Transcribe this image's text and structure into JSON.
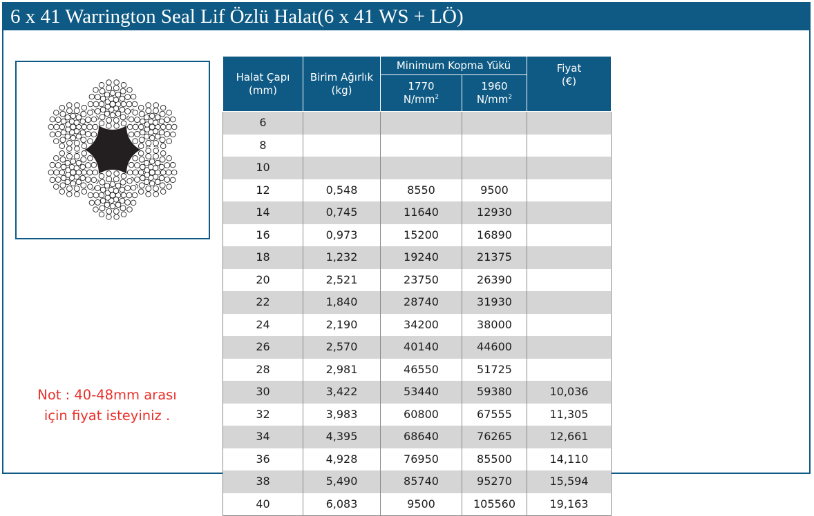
{
  "header": {
    "title": "6 x 41 Warrington Seal Lif Özlü Halat(6 x 41 WS + LÖ)"
  },
  "image": {
    "icon": "wire-rope-cross-section-icon"
  },
  "table": {
    "col_diameter": "Halat Çapı",
    "col_diameter_unit": "(mm)",
    "col_weight": "Birim Ağırlık",
    "col_weight_unit": "(kg)",
    "col_break_group": "Minimum Kopma Yükü",
    "col_1770": "1770",
    "col_1960": "1960",
    "unit_nmm": "N/mm",
    "unit_exp": "2",
    "col_price": "Fiyat",
    "col_price_unit": "(€)",
    "rows": [
      {
        "d": "6",
        "w": "",
        "k1770": "",
        "k1960": "",
        "price": ""
      },
      {
        "d": "8",
        "w": "",
        "k1770": "",
        "k1960": "",
        "price": ""
      },
      {
        "d": "10",
        "w": "",
        "k1770": "",
        "k1960": "",
        "price": ""
      },
      {
        "d": "12",
        "w": "0,548",
        "k1770": "8550",
        "k1960": "9500",
        "price": ""
      },
      {
        "d": "14",
        "w": "0,745",
        "k1770": "11640",
        "k1960": "12930",
        "price": ""
      },
      {
        "d": "16",
        "w": "0,973",
        "k1770": "15200",
        "k1960": "16890",
        "price": ""
      },
      {
        "d": "18",
        "w": "1,232",
        "k1770": "19240",
        "k1960": "21375",
        "price": ""
      },
      {
        "d": "20",
        "w": "2,521",
        "k1770": "23750",
        "k1960": "26390",
        "price": ""
      },
      {
        "d": "22",
        "w": "1,840",
        "k1770": "28740",
        "k1960": "31930",
        "price": ""
      },
      {
        "d": "24",
        "w": "2,190",
        "k1770": "34200",
        "k1960": "38000",
        "price": ""
      },
      {
        "d": "26",
        "w": "2,570",
        "k1770": "40140",
        "k1960": "44600",
        "price": ""
      },
      {
        "d": "28",
        "w": "2,981",
        "k1770": "46550",
        "k1960": "51725",
        "price": ""
      },
      {
        "d": "30",
        "w": "3,422",
        "k1770": "53440",
        "k1960": "59380",
        "price": "10,036"
      },
      {
        "d": "32",
        "w": "3,983",
        "k1770": "60800",
        "k1960": "67555",
        "price": "11,305"
      },
      {
        "d": "34",
        "w": "4,395",
        "k1770": "68640",
        "k1960": "76265",
        "price": "12,661"
      },
      {
        "d": "36",
        "w": "4,928",
        "k1770": "76950",
        "k1960": "85500",
        "price": "14,110"
      },
      {
        "d": "38",
        "w": "5,490",
        "k1770": "85740",
        "k1960": "95270",
        "price": "15,594"
      },
      {
        "d": "40",
        "w": "6,083",
        "k1770": "9500",
        "k1960": "105560",
        "price": "19,163"
      }
    ]
  },
  "note": {
    "line1": "Not : 40-48mm arası",
    "line2": "için fiyat isteyiniz ."
  },
  "colors": {
    "header_blue": "#0e5a84",
    "row_gray": "#d5d5d5",
    "note_red": "#e8302a"
  }
}
